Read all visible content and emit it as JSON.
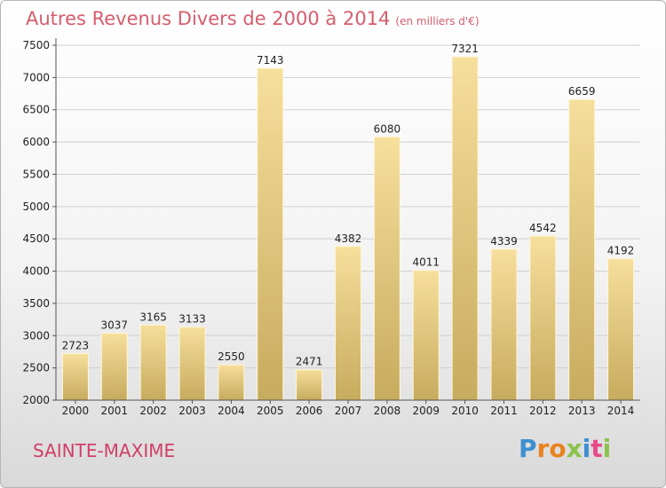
{
  "header": {
    "title": "Autres Revenus Divers de 2000 à 2014",
    "unit": "(en milliers d'€)"
  },
  "footer": {
    "city": "SAINTE-MAXIME",
    "logo_letters": [
      "P",
      "r",
      "o",
      "x",
      "i",
      "t",
      "i"
    ],
    "logo_colors": [
      "#3d8fd1",
      "#e9831f",
      "#e9831f",
      "#8bc34a",
      "#3d8fd1",
      "#e64a8b",
      "#8bc34a"
    ]
  },
  "chart_data": {
    "type": "bar",
    "title": "Autres Revenus Divers de 2000 à 2014",
    "xlabel": "",
    "ylabel": "",
    "categories": [
      "2000",
      "2001",
      "2002",
      "2003",
      "2004",
      "2005",
      "2006",
      "2007",
      "2008",
      "2009",
      "2010",
      "2011",
      "2012",
      "2013",
      "2014"
    ],
    "values": [
      2723,
      3037,
      3165,
      3133,
      2550,
      7143,
      2471,
      4382,
      6080,
      4011,
      7321,
      4339,
      4542,
      6659,
      4192
    ],
    "ylim": [
      2000,
      7500
    ],
    "yticks": [
      2000,
      2500,
      3000,
      3500,
      4000,
      4500,
      5000,
      5500,
      6000,
      6500,
      7000,
      7500
    ],
    "grid": true,
    "bar_color": "#e8cf85"
  }
}
